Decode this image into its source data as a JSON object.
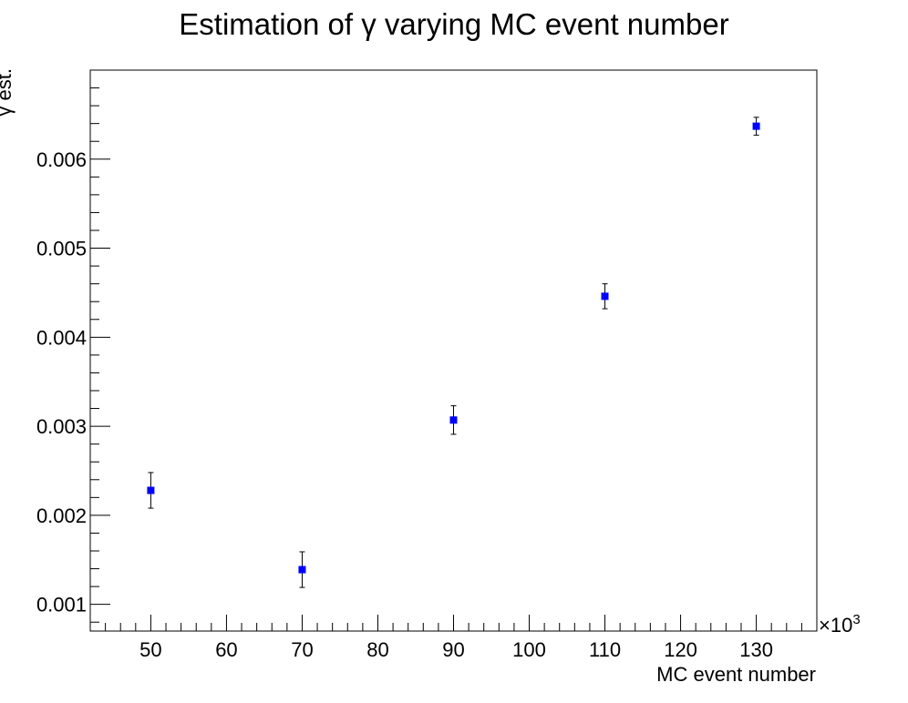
{
  "chart_data": {
    "type": "scatter",
    "title": "Estimation of γ varying MC event number",
    "xlabel": "MC event number",
    "ylabel": "γ est.",
    "x_multiplier_label": "×10",
    "x_multiplier_exponent": "3",
    "xlim": [
      42,
      138
    ],
    "ylim": [
      0.0007,
      0.007
    ],
    "x_ticks": [
      50,
      60,
      70,
      80,
      90,
      100,
      110,
      120,
      130
    ],
    "x_tick_labels": [
      "50",
      "60",
      "70",
      "80",
      "90",
      "100",
      "110",
      "120",
      "130"
    ],
    "y_ticks": [
      0.001,
      0.002,
      0.003,
      0.004,
      0.005,
      0.006
    ],
    "y_tick_labels": [
      "0.001",
      "0.002",
      "0.003",
      "0.004",
      "0.005",
      "0.006"
    ],
    "grid": false,
    "legend": "none",
    "marker_color": "#0000ff",
    "errorbar_color": "#000000",
    "points": [
      {
        "x": 50,
        "y": 0.00228,
        "err": 0.0002
      },
      {
        "x": 70,
        "y": 0.00139,
        "err": 0.0002
      },
      {
        "x": 90,
        "y": 0.00307,
        "err": 0.00016
      },
      {
        "x": 110,
        "y": 0.00446,
        "err": 0.00014
      },
      {
        "x": 130,
        "y": 0.00637,
        "err": 0.0001
      }
    ]
  }
}
